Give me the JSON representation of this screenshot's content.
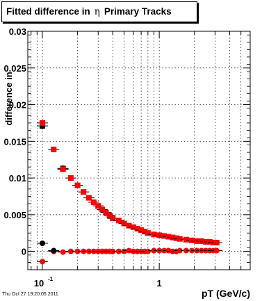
{
  "title": {
    "prefix": "Fitted difference in",
    "symbol": "η",
    "suffix": "Primary Tracks"
  },
  "timestamp": "Thu Oct 27 19:20:05 2011",
  "colors": {
    "series_red": "#ff0000",
    "series_black": "#000000"
  },
  "chart_data": {
    "type": "scatter",
    "title": "Fitted difference in η Primary Tracks",
    "xlabel": "pT (GeV/c)",
    "ylabel": "difference in",
    "x_scale": "log",
    "xlim": [
      0.075,
      6.0
    ],
    "ylim": [
      -0.0025,
      0.03
    ],
    "grid": true,
    "x_tick_labels": [
      {
        "value": 0.1,
        "base": "10",
        "exp": "-1"
      },
      {
        "value": 1,
        "base": "1",
        "exp": ""
      }
    ],
    "y_ticks": [
      0,
      0.005,
      0.01,
      0.015,
      0.02,
      0.025,
      0.03
    ],
    "y_tick_labels": [
      "0",
      "0.005",
      "0.01",
      "0.015",
      "0.02",
      "0.025",
      "0.03"
    ],
    "series": [
      {
        "marker": "square",
        "color": "#ff0000",
        "x": [
          0.1,
          0.125,
          0.15,
          0.175,
          0.2,
          0.225,
          0.25,
          0.275,
          0.3,
          0.325,
          0.35,
          0.375,
          0.4,
          0.45,
          0.5,
          0.55,
          0.6,
          0.65,
          0.7,
          0.75,
          0.8,
          0.9,
          1.0,
          1.1,
          1.2,
          1.3,
          1.4,
          1.5,
          1.7,
          1.9,
          2.1,
          2.3,
          2.5,
          2.7,
          2.9,
          3.1
        ],
        "y": [
          0.0175,
          0.0139,
          0.0112,
          0.01,
          0.009,
          0.0081,
          0.0073,
          0.0067,
          0.0062,
          0.0057,
          0.0053,
          0.0049,
          0.0045,
          0.0042,
          0.0038,
          0.0035,
          0.0033,
          0.0031,
          0.0029,
          0.0027,
          0.0025,
          0.0023,
          0.0022,
          0.0021,
          0.002,
          0.0019,
          0.0018,
          0.0017,
          0.0016,
          0.0015,
          0.0014,
          0.0014,
          0.0013,
          0.0013,
          0.0012,
          0.0012
        ]
      },
      {
        "marker": "circle",
        "color": "#ff0000",
        "x": [
          0.1,
          0.125,
          0.15,
          0.175,
          0.2,
          0.225,
          0.25,
          0.275,
          0.3,
          0.325,
          0.35,
          0.375,
          0.4,
          0.45,
          0.5,
          0.55,
          0.6,
          0.65,
          0.7,
          0.75,
          0.8,
          0.9,
          1.0,
          1.1,
          1.2,
          1.3,
          1.4,
          1.5,
          1.7,
          1.9,
          2.1,
          2.3,
          2.5,
          2.7,
          2.9,
          3.1
        ],
        "y": [
          -0.0014,
          0.0,
          -0.0001,
          0.0,
          0.0,
          0.0,
          0.0,
          0.0,
          0.0,
          0.0,
          0.0,
          0.0,
          0.0,
          0.0,
          0.0,
          0.0001,
          0.0,
          0.0,
          0.0,
          0.0,
          0.0,
          0.0001,
          0.0001,
          0.0001,
          0.0001,
          0.0,
          0.0,
          0.0001,
          0.0001,
          0.0001,
          0.0001,
          0.0001,
          0.0001,
          0.0001,
          0.0001,
          0.0001
        ]
      },
      {
        "marker": "square",
        "color": "#000000",
        "x": [
          0.1,
          0.15
        ],
        "y": [
          0.0171,
          0.0113
        ]
      },
      {
        "marker": "circle",
        "color": "#000000",
        "x": [
          0.1,
          0.125
        ],
        "y": [
          0.0011,
          0.0001
        ]
      }
    ]
  }
}
